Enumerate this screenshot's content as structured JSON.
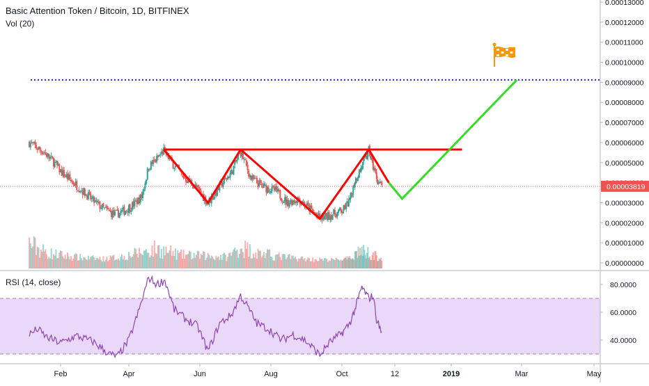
{
  "header": {
    "title": "Basic Attention Token / Bitcoin, 1D, BITFINEX",
    "volume_label": "Vol (20)",
    "rsi_label": "RSI (14, close)"
  },
  "colors": {
    "up": "#26a69a",
    "down": "#ef5350",
    "pattern": "#ff0000",
    "projection": "#33dd22",
    "target_line": "#1a24d6",
    "price_line": "#ef5350",
    "rsi_line": "#8e44ad",
    "rsi_band": "#e9d8f7",
    "flag": "#ff9800"
  },
  "chart_data": [
    {
      "type": "candlestick",
      "title": "Basic Attention Token / Bitcoin, 1D, BITFINEX",
      "xlabel": "",
      "ylabel": "",
      "x_ticks": [
        "Feb",
        "Apr",
        "Jun",
        "Aug",
        "Oct",
        "12",
        "2019",
        "Mar",
        "May"
      ],
      "y_ticks": [
        "0.00000000",
        "0.00001000",
        "0.00002000",
        "0.00003000",
        "0.00004000",
        "0.00005000",
        "0.00006000",
        "0.00007000",
        "0.00008000",
        "0.00009000",
        "0.00010000",
        "0.00011000",
        "0.00012000",
        "0.00013000"
      ],
      "ylim": [
        0,
        0.00013
      ],
      "grid": false,
      "last_price_label": "0.00003819",
      "last_price": 3.819e-05,
      "target_level": 9.12e-05,
      "price_path": [
        [
          "2018-01-05",
          6e-05
        ],
        [
          "2018-01-10",
          5.8e-05
        ],
        [
          "2018-01-18",
          5.5e-05
        ],
        [
          "2018-01-25",
          5.1e-05
        ],
        [
          "2018-02-02",
          4.5e-05
        ],
        [
          "2018-02-10",
          4.1e-05
        ],
        [
          "2018-02-20",
          3.6e-05
        ],
        [
          "2018-03-01",
          3.1e-05
        ],
        [
          "2018-03-10",
          2.7e-05
        ],
        [
          "2018-03-20",
          2.4e-05
        ],
        [
          "2018-03-28",
          2.6e-05
        ],
        [
          "2018-04-05",
          2.9e-05
        ],
        [
          "2018-04-12",
          3.3e-05
        ],
        [
          "2018-04-18",
          4.8e-05
        ],
        [
          "2018-04-24",
          5.1e-05
        ],
        [
          "2018-05-01",
          5.6e-05
        ],
        [
          "2018-05-08",
          5e-05
        ],
        [
          "2018-05-18",
          4.3e-05
        ],
        [
          "2018-05-28",
          3.8e-05
        ],
        [
          "2018-06-08",
          3e-05
        ],
        [
          "2018-06-18",
          3.8e-05
        ],
        [
          "2018-06-28",
          4.5e-05
        ],
        [
          "2018-07-06",
          5.55e-05
        ],
        [
          "2018-07-15",
          4.2e-05
        ],
        [
          "2018-07-25",
          3.8e-05
        ],
        [
          "2018-08-05",
          3.6e-05
        ],
        [
          "2018-08-15",
          3e-05
        ],
        [
          "2018-08-25",
          3.2e-05
        ],
        [
          "2018-09-05",
          2.6e-05
        ],
        [
          "2018-09-12",
          2.2e-05
        ],
        [
          "2018-09-22",
          2.4e-05
        ],
        [
          "2018-10-02",
          2.6e-05
        ],
        [
          "2018-10-10",
          3.1e-05
        ],
        [
          "2018-10-16",
          4.1e-05
        ],
        [
          "2018-10-24",
          4.8e-05
        ],
        [
          "2018-11-01",
          5.6e-05
        ],
        [
          "2018-11-06",
          4.8e-05
        ],
        [
          "2018-11-12",
          4e-05
        ],
        [
          "2018-11-16",
          3.82e-05
        ]
      ],
      "volume_path": [
        [
          "2018-01-05",
          9.5e-06
        ],
        [
          "2018-01-20",
          5e-06
        ],
        [
          "2018-02-05",
          3.5e-06
        ],
        [
          "2018-02-20",
          2.5e-06
        ],
        [
          "2018-03-10",
          2e-06
        ],
        [
          "2018-03-25",
          3e-06
        ],
        [
          "2018-04-10",
          5e-06
        ],
        [
          "2018-04-25",
          7e-06
        ],
        [
          "2018-05-15",
          4e-06
        ],
        [
          "2018-06-05",
          3.5e-06
        ],
        [
          "2018-06-25",
          3e-06
        ],
        [
          "2018-07-06",
          8e-06
        ],
        [
          "2018-07-20",
          5e-06
        ],
        [
          "2018-08-10",
          3e-06
        ],
        [
          "2018-08-30",
          2e-06
        ],
        [
          "2018-09-20",
          1.5e-06
        ],
        [
          "2018-10-10",
          2e-06
        ],
        [
          "2018-10-20",
          6e-06
        ],
        [
          "2018-11-01",
          5e-06
        ],
        [
          "2018-11-16",
          2e-06
        ]
      ],
      "pattern_lines": [
        {
          "name": "neckline",
          "points": [
            [
              "2018-05-01",
              5.65e-05
            ],
            [
              "2019-01-10",
              5.65e-05
            ]
          ]
        },
        {
          "name": "left-shoulder",
          "points": [
            [
              "2018-05-01",
              5.65e-05
            ],
            [
              "2018-06-08",
              3e-05
            ],
            [
              "2018-07-06",
              5.65e-05
            ]
          ]
        },
        {
          "name": "head",
          "points": [
            [
              "2018-07-06",
              5.65e-05
            ],
            [
              "2018-09-12",
              2.2e-05
            ],
            [
              "2018-11-01",
              5.65e-05
            ]
          ]
        },
        {
          "name": "right-shoulder",
          "points": [
            [
              "2018-11-01",
              5.65e-05
            ],
            [
              "2018-11-24",
              4e-05
            ]
          ]
        }
      ],
      "projection": [
        [
          "2018-11-24",
          4e-05
        ],
        [
          "2018-12-05",
          3.2e-05
        ],
        [
          "2019-02-25",
          9.12e-05
        ]
      ]
    },
    {
      "type": "line",
      "title": "RSI (14, close)",
      "y_ticks": [
        "40.0000",
        "60.0000",
        "80.0000"
      ],
      "ylim": [
        25,
        87
      ],
      "band": [
        30,
        70
      ],
      "rsi_path": [
        [
          "2018-01-05",
          44
        ],
        [
          "2018-01-12",
          48
        ],
        [
          "2018-01-20",
          42
        ],
        [
          "2018-02-01",
          38
        ],
        [
          "2018-02-15",
          43
        ],
        [
          "2018-03-01",
          39
        ],
        [
          "2018-03-15",
          30
        ],
        [
          "2018-03-22",
          28
        ],
        [
          "2018-04-01",
          40
        ],
        [
          "2018-04-10",
          62
        ],
        [
          "2018-04-18",
          85
        ],
        [
          "2018-04-25",
          80
        ],
        [
          "2018-05-02",
          83
        ],
        [
          "2018-05-10",
          62
        ],
        [
          "2018-05-20",
          55
        ],
        [
          "2018-05-30",
          50
        ],
        [
          "2018-06-08",
          32
        ],
        [
          "2018-06-18",
          52
        ],
        [
          "2018-06-28",
          58
        ],
        [
          "2018-07-06",
          72
        ],
        [
          "2018-07-12",
          64
        ],
        [
          "2018-07-20",
          52
        ],
        [
          "2018-07-30",
          48
        ],
        [
          "2018-08-10",
          40
        ],
        [
          "2018-08-20",
          44
        ],
        [
          "2018-08-30",
          40
        ],
        [
          "2018-09-08",
          33
        ],
        [
          "2018-09-12",
          29
        ],
        [
          "2018-09-20",
          38
        ],
        [
          "2018-10-01",
          45
        ],
        [
          "2018-10-10",
          52
        ],
        [
          "2018-10-16",
          62
        ],
        [
          "2018-10-24",
          78
        ],
        [
          "2018-11-01",
          70
        ],
        [
          "2018-11-06",
          72
        ],
        [
          "2018-11-10",
          55
        ],
        [
          "2018-11-16",
          45
        ]
      ]
    }
  ]
}
